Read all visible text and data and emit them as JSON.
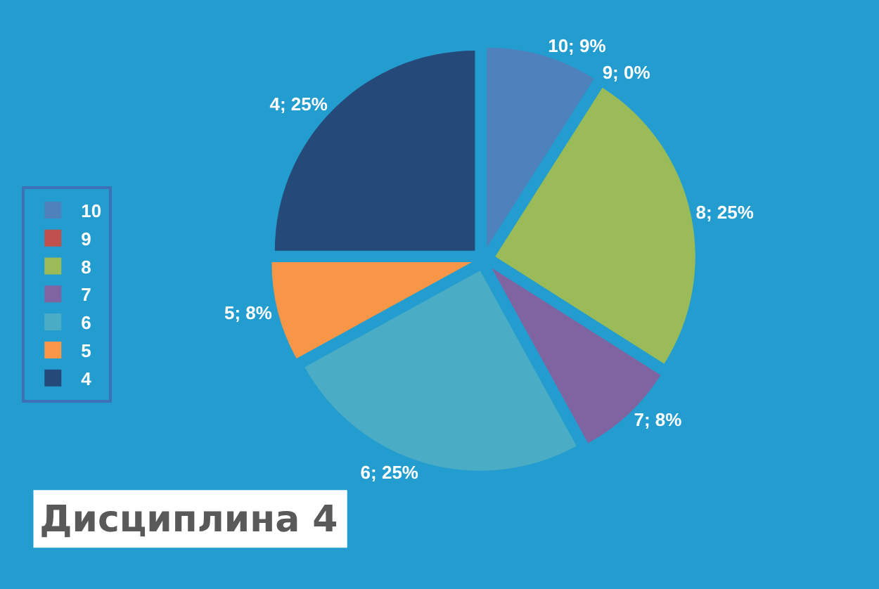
{
  "chart_data": {
    "type": "pie",
    "title": "Дисциплина 4",
    "categories": [
      "10",
      "9",
      "8",
      "7",
      "6",
      "5",
      "4"
    ],
    "values": [
      9,
      0,
      25,
      8,
      25,
      8,
      25
    ],
    "colors": [
      "#4f81bd",
      "#c0504d",
      "#9bbb59",
      "#8064a2",
      "#4bacc6",
      "#f79646",
      "#254a7a"
    ],
    "value_labels": [
      "10; 9%",
      "9; 0%",
      "8; 25%",
      "7; 8%",
      "6; 25%",
      "5; 8%",
      "4; 25%"
    ],
    "legend": "left"
  }
}
